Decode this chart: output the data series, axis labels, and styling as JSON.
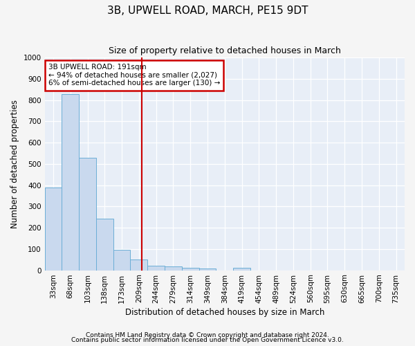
{
  "title": "3B, UPWELL ROAD, MARCH, PE15 9DT",
  "subtitle": "Size of property relative to detached houses in March",
  "xlabel": "Distribution of detached houses by size in March",
  "ylabel": "Number of detached properties",
  "categories": [
    "33sqm",
    "68sqm",
    "103sqm",
    "138sqm",
    "173sqm",
    "209sqm",
    "244sqm",
    "279sqm",
    "314sqm",
    "349sqm",
    "384sqm",
    "419sqm",
    "454sqm",
    "489sqm",
    "524sqm",
    "560sqm",
    "595sqm",
    "630sqm",
    "665sqm",
    "700sqm",
    "735sqm"
  ],
  "values": [
    390,
    828,
    530,
    243,
    97,
    51,
    22,
    17,
    11,
    8,
    0,
    10,
    0,
    0,
    0,
    0,
    0,
    0,
    0,
    0,
    0
  ],
  "bar_color": "#c9d9ee",
  "bar_edge_color": "#6baed6",
  "ylim": [
    0,
    1000
  ],
  "yticks": [
    0,
    100,
    200,
    300,
    400,
    500,
    600,
    700,
    800,
    900,
    1000
  ],
  "red_line_x": 5.15,
  "annotation_line1": "3B UPWELL ROAD: 191sqm",
  "annotation_line2": "← 94% of detached houses are smaller (2,027)",
  "annotation_line3": "6% of semi-detached houses are larger (130) →",
  "annotation_box_color": "#ffffff",
  "annotation_box_edge_color": "#cc0000",
  "plot_bg_color": "#e8eef7",
  "fig_bg_color": "#f5f5f5",
  "grid_color": "#ffffff",
  "footer_line1": "Contains HM Land Registry data © Crown copyright and database right 2024.",
  "footer_line2": "Contains public sector information licensed under the Open Government Licence v3.0.",
  "title_fontsize": 11,
  "subtitle_fontsize": 9,
  "axis_label_fontsize": 8.5,
  "tick_fontsize": 7.5,
  "annotation_fontsize": 7.5,
  "footer_fontsize": 6.5
}
